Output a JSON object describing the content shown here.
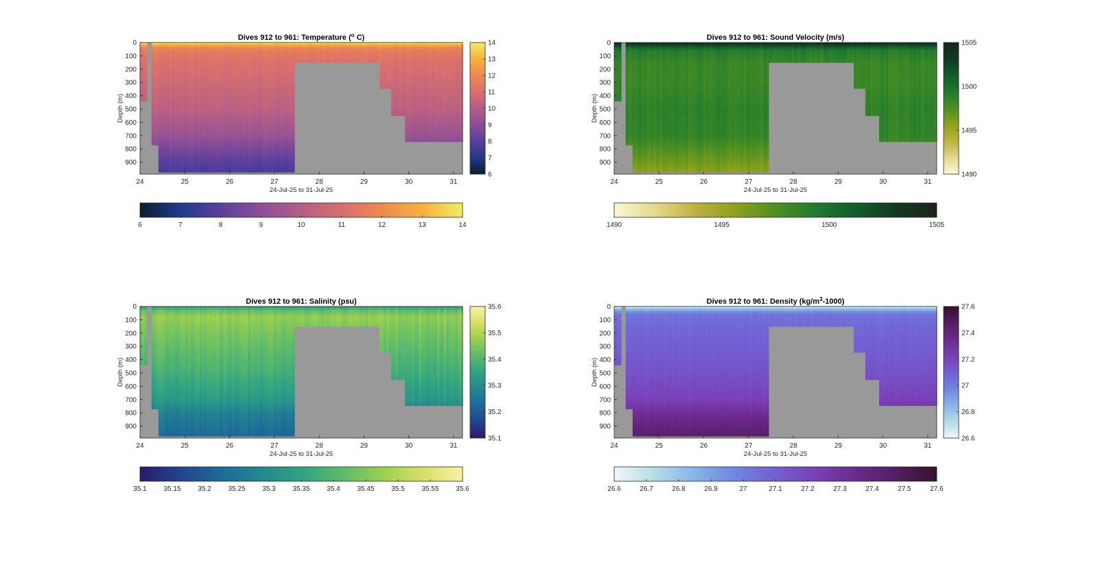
{
  "chart_data": [
    {
      "type": "heatmap",
      "variable": "temperature",
      "title": "Dives 912 to 961: Temperature (° C)",
      "title_parts": [
        "Dives 912 to 961: Temperature (",
        "o",
        " C)"
      ],
      "xlabel": "24-Jul-25 to 31-Jul-25",
      "ylabel": "Depth (m)",
      "xlim": [
        24,
        31.2
      ],
      "ylim": [
        0,
        990
      ],
      "xticks": [
        24,
        25,
        26,
        27,
        28,
        29,
        30,
        31
      ],
      "yticks": [
        0,
        100,
        200,
        300,
        400,
        500,
        600,
        700,
        800,
        900
      ],
      "clim": [
        6,
        14
      ],
      "colormap": [
        "#0b1e2e",
        "#203a8c",
        "#5b3f9e",
        "#8c4f96",
        "#b45e87",
        "#d96f6e",
        "#f0884f",
        "#f7b13d",
        "#f0ed5f"
      ],
      "side_colorbar_ticks": [
        "6",
        "7",
        "8",
        "9",
        "10",
        "11",
        "12",
        "13",
        "14"
      ],
      "bottom_colorbar_ticks": [
        "6",
        "7",
        "8",
        "9",
        "10",
        "11",
        "12",
        "13",
        "14"
      ],
      "profile": [
        [
          0,
          13.8
        ],
        [
          10,
          13.4
        ],
        [
          30,
          12.2
        ],
        [
          60,
          11.5
        ],
        [
          150,
          11.1
        ],
        [
          300,
          10.7
        ],
        [
          500,
          10.2
        ],
        [
          700,
          9.3
        ],
        [
          800,
          8.6
        ],
        [
          900,
          8.0
        ],
        [
          990,
          7.6
        ]
      ],
      "noise": 0.15
    },
    {
      "type": "heatmap",
      "variable": "sound_velocity",
      "title": "Dives 912 to 961: Sound Velocity (m/s)",
      "title_parts": [
        "Dives 912 to 961: Sound Velocity (m/s)"
      ],
      "xlabel": "24-Jul-25 to 31-Jul-25",
      "ylabel": "Depth (m)",
      "xlim": [
        24,
        31.2
      ],
      "ylim": [
        0,
        990
      ],
      "xticks": [
        24,
        25,
        26,
        27,
        28,
        29,
        30,
        31
      ],
      "yticks": [
        0,
        100,
        200,
        300,
        400,
        500,
        600,
        700,
        800,
        900
      ],
      "clim": [
        1490,
        1505
      ],
      "colormap": [
        "#fcf8d4",
        "#e4d98d",
        "#bfb13f",
        "#8fa11a",
        "#4e9021",
        "#207b2e",
        "#135c2c",
        "#123a20",
        "#1b2419"
      ],
      "side_colorbar_ticks": [
        "1490",
        "1495",
        "1500",
        "1505"
      ],
      "bottom_colorbar_ticks": [
        "1490",
        "1495",
        "1500",
        "1505"
      ],
      "profile": [
        [
          0,
          1504.5
        ],
        [
          30,
          1501.5
        ],
        [
          60,
          1499.2
        ],
        [
          150,
          1498.4
        ],
        [
          300,
          1498.3
        ],
        [
          500,
          1498.8
        ],
        [
          700,
          1498.6
        ],
        [
          800,
          1497.5
        ],
        [
          900,
          1496.5
        ],
        [
          990,
          1495.5
        ]
      ],
      "noise": 0.5
    },
    {
      "type": "heatmap",
      "variable": "salinity",
      "title": "Dives 912 to 961: Salinity (psu)",
      "title_parts": [
        "Dives 912 to 961: Salinity (psu)"
      ],
      "xlabel": "24-Jul-25 to 31-Jul-25",
      "ylabel": "Depth (m)",
      "xlim": [
        24,
        31.2
      ],
      "ylim": [
        0,
        990
      ],
      "xticks": [
        24,
        25,
        26,
        27,
        28,
        29,
        30,
        31
      ],
      "yticks": [
        0,
        100,
        200,
        300,
        400,
        500,
        600,
        700,
        800,
        900
      ],
      "clim": [
        35.1,
        35.6
      ],
      "colormap": [
        "#2a1a6a",
        "#23448f",
        "#1d6a99",
        "#24878f",
        "#30a283",
        "#5cbb6a",
        "#99cf4f",
        "#d5e065",
        "#fbf1a5"
      ],
      "side_colorbar_ticks": [
        "35.1",
        "35.2",
        "35.3",
        "35.4",
        "35.5",
        "35.6"
      ],
      "bottom_colorbar_ticks": [
        "35.1",
        "35.15",
        "35.2",
        "35.25",
        "35.3",
        "35.35",
        "35.4",
        "35.45",
        "35.5",
        "35.55",
        "35.6"
      ],
      "profile": [
        [
          0,
          35.33
        ],
        [
          30,
          35.42
        ],
        [
          80,
          35.47
        ],
        [
          150,
          35.45
        ],
        [
          300,
          35.42
        ],
        [
          500,
          35.38
        ],
        [
          700,
          35.33
        ],
        [
          800,
          35.27
        ],
        [
          990,
          35.22
        ]
      ],
      "noise": 0.02
    },
    {
      "type": "heatmap",
      "variable": "density",
      "title": "Dives 912 to 961: Density (kg/m³-1000)",
      "title_parts": [
        "Dives 912 to 961: Density (kg/m",
        "3",
        "-1000)"
      ],
      "xlabel": "24-Jul-25 to 31-Jul-25",
      "ylabel": "Depth (m)",
      "xlim": [
        24,
        31.2
      ],
      "ylim": [
        0,
        990
      ],
      "xticks": [
        24,
        25,
        26,
        27,
        28,
        29,
        30,
        31
      ],
      "yticks": [
        0,
        100,
        200,
        300,
        400,
        500,
        600,
        700,
        800,
        900
      ],
      "clim": [
        26.6,
        27.6
      ],
      "colormap": [
        "#f0f7f9",
        "#b5dbe6",
        "#85b4e8",
        "#6d86df",
        "#745ed3",
        "#7a3fb6",
        "#6c2a8c",
        "#541e62",
        "#36102f"
      ],
      "side_colorbar_ticks": [
        "26.6",
        "26.8",
        "27",
        "27.2",
        "27.4",
        "27.6"
      ],
      "bottom_colorbar_ticks": [
        "26.6",
        "26.7",
        "26.8",
        "26.9",
        "27",
        "27.1",
        "27.2",
        "27.3",
        "27.4",
        "27.5",
        "27.6"
      ],
      "profile": [
        [
          0,
          26.65
        ],
        [
          30,
          26.9
        ],
        [
          60,
          27.03
        ],
        [
          150,
          27.07
        ],
        [
          300,
          27.1
        ],
        [
          500,
          27.15
        ],
        [
          700,
          27.22
        ],
        [
          800,
          27.32
        ],
        [
          900,
          27.4
        ],
        [
          990,
          27.47
        ]
      ],
      "noise": 0.015
    }
  ],
  "data_extent": {
    "note_free": true,
    "missing_color": "#999999",
    "deep_mask": [
      [
        24.0,
        24.14,
        440
      ],
      [
        24.14,
        24.28,
        0
      ],
      [
        24.28,
        24.4,
        770
      ],
      [
        24.4,
        27.46,
        975
      ],
      [
        27.46,
        29.33,
        150
      ],
      [
        29.33,
        29.62,
        345
      ],
      [
        29.62,
        29.9,
        550
      ],
      [
        29.9,
        31.2,
        745
      ]
    ]
  }
}
